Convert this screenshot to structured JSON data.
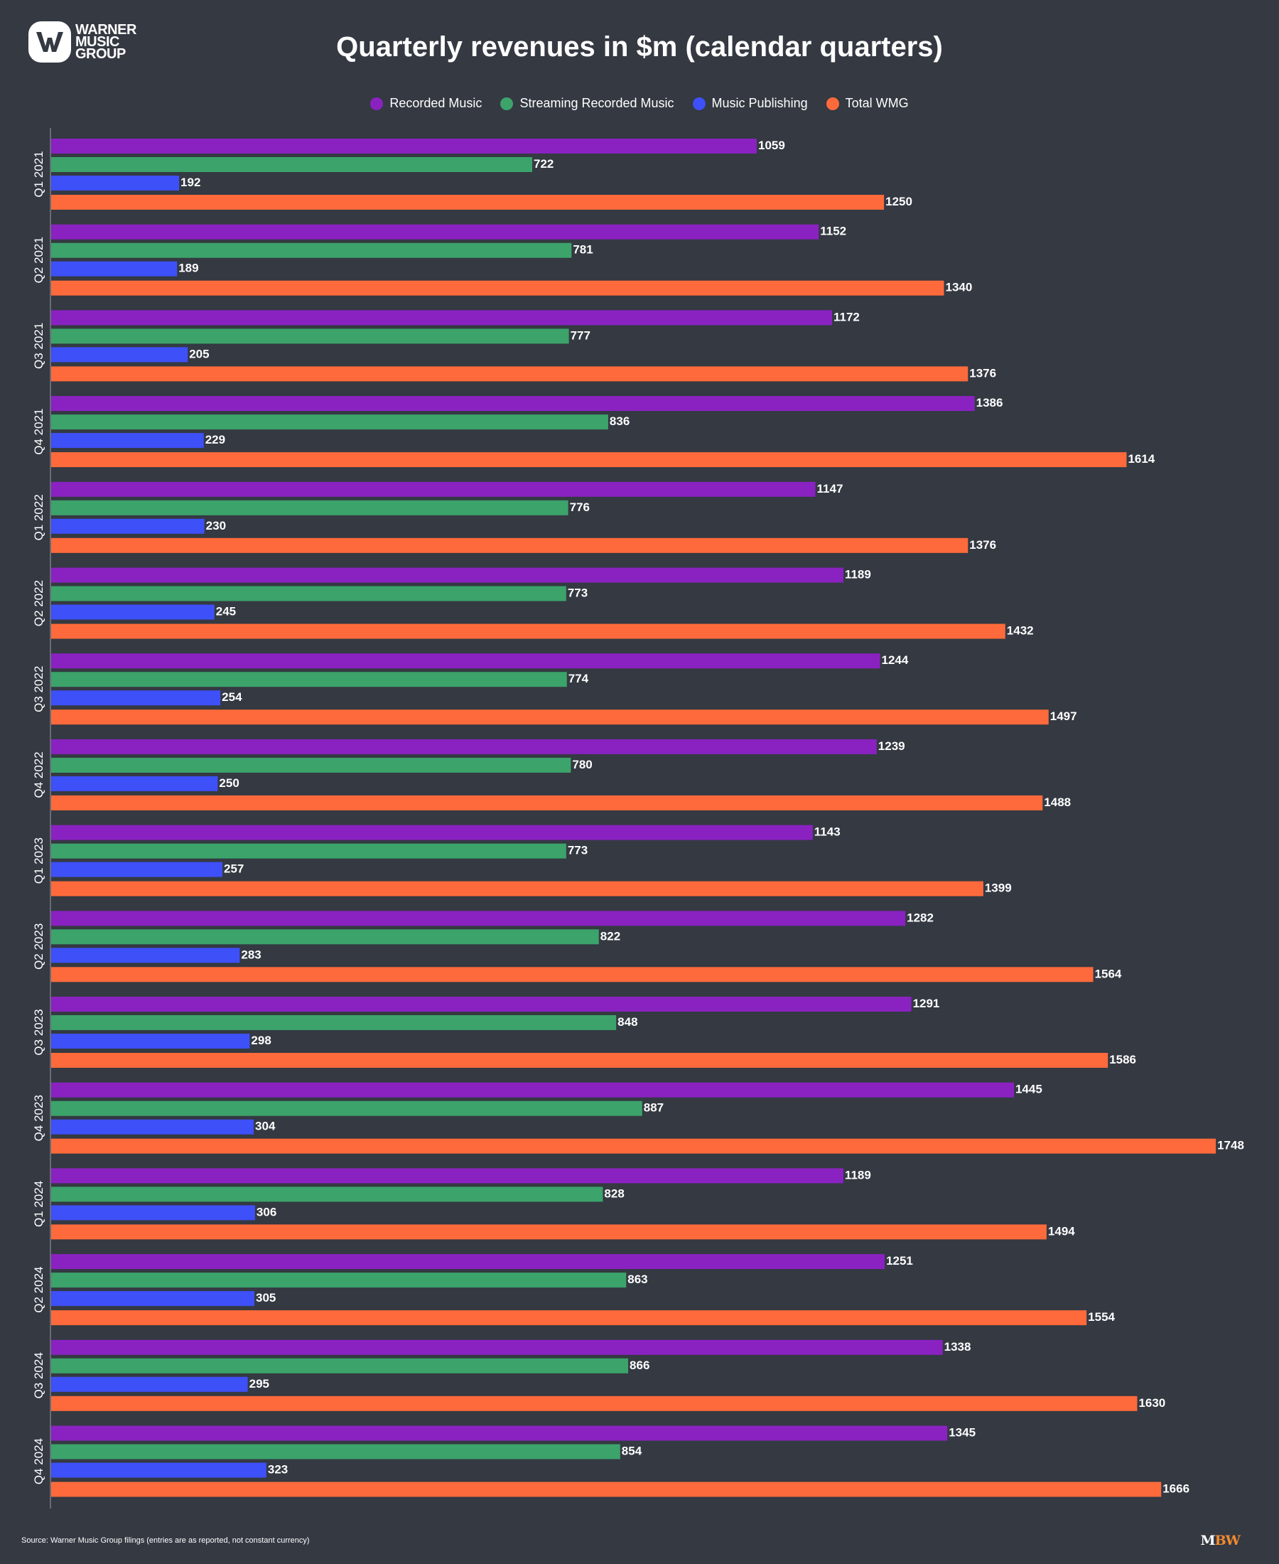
{
  "logo": {
    "text": "WARNER MUSIC GROUP"
  },
  "chart_data": {
    "type": "bar",
    "orientation": "horizontal",
    "title": "Quarterly revenues in $m (calendar quarters)",
    "xlabel": "",
    "ylabel": "",
    "xlim": [
      0,
      1800
    ],
    "grid": false,
    "legend_position": "top-center",
    "categories": [
      "Q1 2021",
      "Q2 2021",
      "Q3 2021",
      "Q4 2021",
      "Q1 2022",
      "Q2 2022",
      "Q3 2022",
      "Q4 2022",
      "Q1 2023",
      "Q2 2023",
      "Q3 2023",
      "Q4 2023",
      "Q1 2024",
      "Q2 2024",
      "Q3 2024",
      "Q4 2024"
    ],
    "series": [
      {
        "name": "Recorded Music",
        "color": "#8a22c1",
        "values": [
          1059,
          1152,
          1172,
          1386,
          1147,
          1189,
          1244,
          1239,
          1143,
          1282,
          1291,
          1445,
          1189,
          1251,
          1338,
          1345
        ]
      },
      {
        "name": "Streaming Recorded Music",
        "color": "#3ca36b",
        "values": [
          722,
          781,
          777,
          836,
          776,
          773,
          774,
          780,
          773,
          822,
          848,
          887,
          828,
          863,
          866,
          854
        ]
      },
      {
        "name": "Music Publishing",
        "color": "#3e50f7",
        "values": [
          192,
          189,
          205,
          229,
          230,
          245,
          254,
          250,
          257,
          283,
          298,
          304,
          306,
          305,
          295,
          323
        ]
      },
      {
        "name": "Total WMG",
        "color": "#fe6a3b",
        "values": [
          1250,
          1340,
          1376,
          1614,
          1376,
          1432,
          1497,
          1488,
          1399,
          1564,
          1586,
          1748,
          1494,
          1554,
          1630,
          1666
        ]
      }
    ],
    "data_labels": true
  },
  "footer": {
    "source": "Source: Warner Music Group filings (entries are as reported, not constant currency)",
    "brand_m": "M",
    "brand_bw": "BW",
    "brand_color": "#f28a2e"
  }
}
